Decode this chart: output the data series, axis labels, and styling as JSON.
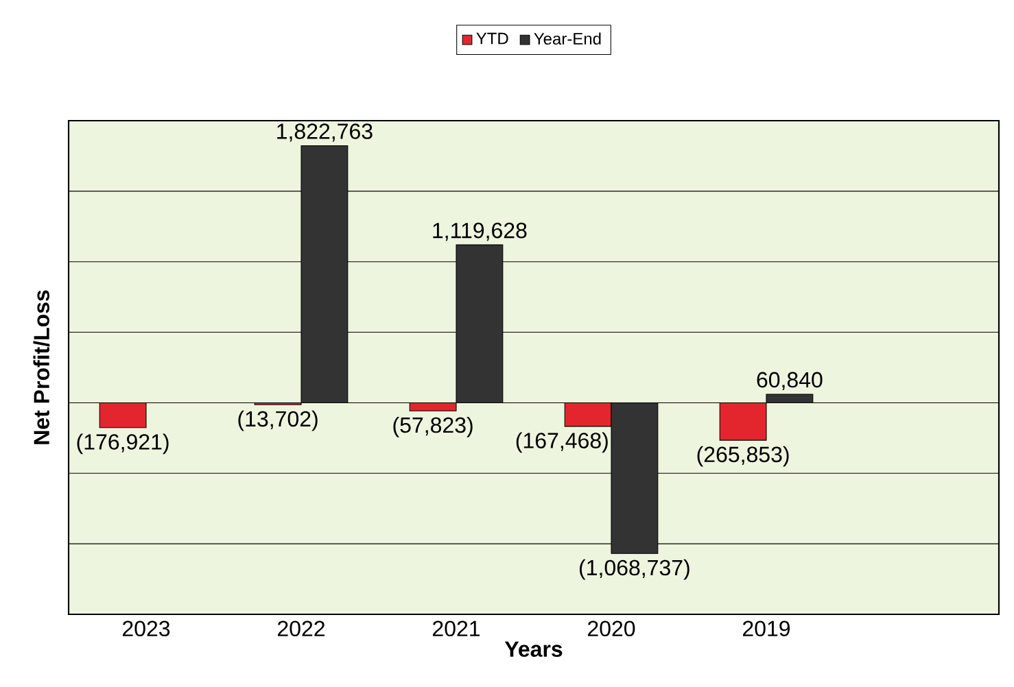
{
  "chart_data": {
    "type": "bar",
    "xlabel": "Years",
    "ylabel": "Net Profit/Loss",
    "categories": [
      "2023",
      "2022",
      "2021",
      "2020",
      "2019",
      null
    ],
    "series": [
      {
        "name": "YTD",
        "color": "#e3262e",
        "values": [
          -176921,
          -13702,
          -57823,
          -167468,
          -265853,
          null
        ],
        "value_labels": [
          "(176,921)",
          "(13,702)",
          "(57,823)",
          "(167,468)",
          "(265,853)",
          null
        ]
      },
      {
        "name": "Year-End",
        "color": "#333333",
        "values": [
          null,
          1822763,
          1119628,
          -1068737,
          60840,
          null
        ],
        "value_labels": [
          null,
          "1,822,763",
          "1,119,628",
          "(1,068,737)",
          "60,840",
          null
        ]
      }
    ],
    "ylim": [
      -1500000,
      2000000
    ],
    "yticks": [
      {
        "value": -1500000,
        "label": null
      },
      {
        "value": -1000000,
        "label": null
      },
      {
        "value": -500000,
        "label": null
      },
      {
        "value": 0,
        "label": null
      },
      {
        "value": 500000,
        "label": null
      },
      {
        "value": 1000000,
        "label": null
      },
      {
        "value": 1500000,
        "label": null
      },
      {
        "value": 2000000,
        "label": null
      }
    ],
    "grid": "y",
    "legend": "top"
  }
}
